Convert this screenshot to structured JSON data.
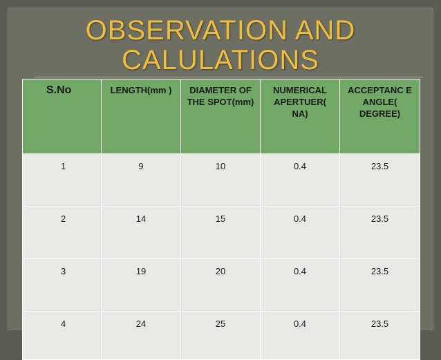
{
  "title": {
    "line1": "OBSERVATION AND",
    "line2": "CALULATIONS"
  },
  "table": {
    "headers": [
      "S.No",
      "LENGTH(mm )",
      "DIAMETER OF THE SPOT(mm)",
      "NUMERICAL APERTUER( NA)",
      "ACCEPTANC E ANGLE( DEGREE)"
    ],
    "rows": [
      [
        "1",
        "9",
        "10",
        "0.4",
        "23.5"
      ],
      [
        "2",
        "14",
        "15",
        "0.4",
        "23.5"
      ],
      [
        "3",
        "19",
        "20",
        "0.4",
        "23.5"
      ],
      [
        "4",
        "24",
        "25",
        "0.4",
        "23.5"
      ]
    ]
  },
  "colors": {
    "background": "#5b5d52",
    "slide": "#6d6f63",
    "title": "#f2bd3c",
    "header_fill": "#72a865",
    "row_fill": "#e5eae3"
  }
}
